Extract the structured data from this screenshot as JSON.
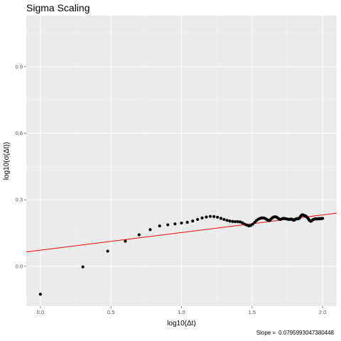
{
  "chart_data": {
    "type": "scatter",
    "title": "Sigma Scaling",
    "xlabel": "log10(Δt)",
    "ylabel": "log10(σ(Δt))",
    "xlim": [
      -0.1,
      2.1
    ],
    "ylim": [
      -0.18,
      1.13
    ],
    "x_ticks": [
      0.0,
      0.5,
      1.0,
      1.5,
      2.0
    ],
    "x_tick_labels": [
      "0.0",
      "0.5",
      "1.0",
      "1.5",
      "2.0"
    ],
    "y_ticks": [
      0.0,
      0.3,
      0.6,
      0.9
    ],
    "y_tick_labels": [
      "0.0",
      "0.3",
      "0.6",
      "0.9"
    ],
    "grid": true,
    "background": "#ebebeb",
    "point_color": "#000000",
    "fit_line": {
      "intercept": 0.0726,
      "slope": 0.0795993047380448,
      "color": "#ff0000"
    },
    "footnote_label": "Slope =",
    "footnote_value": "0.0795993047380448",
    "points": [
      [
        0.0,
        -0.126
      ],
      [
        0.301,
        -0.003
      ],
      [
        0.477,
        0.068
      ],
      [
        0.602,
        0.113
      ],
      [
        0.699,
        0.142
      ],
      [
        0.778,
        0.165
      ],
      [
        0.845,
        0.182
      ],
      [
        0.903,
        0.187
      ],
      [
        0.954,
        0.191
      ],
      [
        1.0,
        0.195
      ],
      [
        1.041,
        0.198
      ],
      [
        1.079,
        0.204
      ],
      [
        1.114,
        0.211
      ],
      [
        1.146,
        0.218
      ],
      [
        1.176,
        0.222
      ],
      [
        1.204,
        0.225
      ],
      [
        1.23,
        0.224
      ],
      [
        1.255,
        0.221
      ],
      [
        1.279,
        0.216
      ],
      [
        1.301,
        0.211
      ],
      [
        1.322,
        0.207
      ],
      [
        1.342,
        0.204
      ],
      [
        1.362,
        0.202
      ],
      [
        1.38,
        0.201
      ],
      [
        1.398,
        0.201
      ],
      [
        1.415,
        0.2
      ],
      [
        1.431,
        0.196
      ],
      [
        1.447,
        0.19
      ],
      [
        1.462,
        0.186
      ],
      [
        1.477,
        0.182
      ],
      [
        1.491,
        0.184
      ],
      [
        1.505,
        0.19
      ],
      [
        1.519,
        0.198
      ],
      [
        1.531,
        0.206
      ],
      [
        1.544,
        0.212
      ],
      [
        1.556,
        0.216
      ],
      [
        1.568,
        0.218
      ],
      [
        1.58,
        0.218
      ],
      [
        1.591,
        0.216
      ],
      [
        1.602,
        0.212
      ],
      [
        1.613,
        0.208
      ],
      [
        1.623,
        0.206
      ],
      [
        1.633,
        0.212
      ],
      [
        1.643,
        0.218
      ],
      [
        1.653,
        0.222
      ],
      [
        1.663,
        0.223
      ],
      [
        1.672,
        0.222
      ],
      [
        1.681,
        0.218
      ],
      [
        1.69,
        0.214
      ],
      [
        1.699,
        0.211
      ],
      [
        1.708,
        0.213
      ],
      [
        1.716,
        0.215
      ],
      [
        1.724,
        0.216
      ],
      [
        1.732,
        0.215
      ],
      [
        1.74,
        0.214
      ],
      [
        1.748,
        0.213
      ],
      [
        1.756,
        0.212
      ],
      [
        1.763,
        0.211
      ],
      [
        1.771,
        0.212
      ],
      [
        1.778,
        0.213
      ],
      [
        1.785,
        0.211
      ],
      [
        1.792,
        0.208
      ],
      [
        1.799,
        0.208
      ],
      [
        1.806,
        0.211
      ],
      [
        1.813,
        0.214
      ],
      [
        1.82,
        0.215
      ],
      [
        1.826,
        0.214
      ],
      [
        1.833,
        0.216
      ],
      [
        1.839,
        0.22
      ],
      [
        1.845,
        0.226
      ],
      [
        1.851,
        0.23
      ],
      [
        1.857,
        0.232
      ],
      [
        1.863,
        0.231
      ],
      [
        1.869,
        0.229
      ],
      [
        1.875,
        0.228
      ],
      [
        1.881,
        0.226
      ],
      [
        1.886,
        0.223
      ],
      [
        1.892,
        0.219
      ],
      [
        1.898,
        0.215
      ],
      [
        1.903,
        0.21
      ],
      [
        1.908,
        0.206
      ],
      [
        1.914,
        0.203
      ],
      [
        1.919,
        0.203
      ],
      [
        1.924,
        0.206
      ],
      [
        1.929,
        0.209
      ],
      [
        1.934,
        0.211
      ],
      [
        1.94,
        0.212
      ],
      [
        1.944,
        0.213
      ],
      [
        1.949,
        0.214
      ],
      [
        1.954,
        0.214
      ],
      [
        1.959,
        0.213
      ],
      [
        1.964,
        0.214
      ],
      [
        1.968,
        0.215
      ],
      [
        1.973,
        0.214
      ],
      [
        1.978,
        0.214
      ],
      [
        1.982,
        0.215
      ],
      [
        1.987,
        0.215
      ],
      [
        1.991,
        0.215
      ],
      [
        1.996,
        0.215
      ],
      [
        2.0,
        0.216
      ]
    ]
  }
}
